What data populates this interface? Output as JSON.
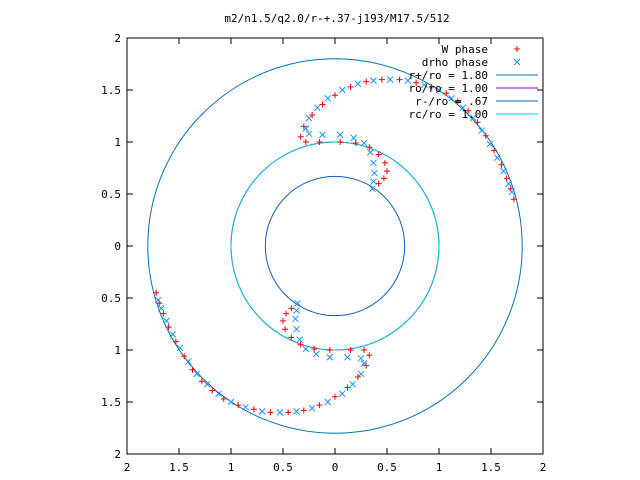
{
  "chart_data": {
    "type": "scatter",
    "title": "m2/n1.5/q2.0/r-+.37-j193/M17.5/512",
    "xlabel": "",
    "ylabel": "",
    "xlim": [
      -2,
      2
    ],
    "ylim": [
      -2,
      2
    ],
    "x_tick_values": [
      -2,
      -1.5,
      -1,
      -0.5,
      0,
      0.5,
      1,
      1.5,
      2
    ],
    "x_tick_labels": [
      "2",
      "1.5",
      "1",
      "0.5",
      "0",
      "0.5",
      "1",
      "1.5",
      "2"
    ],
    "y_tick_values": [
      2,
      1.5,
      1,
      0.5,
      0,
      -0.5,
      -1,
      -1.5,
      -2
    ],
    "y_tick_labels": [
      "2",
      "1.5",
      "1",
      "0.5",
      "0",
      "0.5",
      "1",
      "1.5",
      "2"
    ],
    "grid": false,
    "legend_position": "top-right",
    "legend": [
      {
        "label": "W phase",
        "kind": "marker",
        "marker": "+",
        "color": "#ff0000"
      },
      {
        "label": "drho phase",
        "kind": "marker",
        "marker": "x",
        "color": "#1e90ff"
      },
      {
        "label": "r+/ro = 1.80",
        "kind": "line",
        "color": "#0072b2"
      },
      {
        "label": "ro/ro = 1.00",
        "kind": "line",
        "color": "#9400d3"
      },
      {
        "label": "r-/ro = .67",
        "kind": "line",
        "color": "#1060c0"
      },
      {
        "label": "rc/ro = 1.00",
        "kind": "line",
        "color": "#00c8d0"
      }
    ],
    "circles": [
      {
        "name": "r+/ro = 1.80",
        "radius": 1.8,
        "color": "#0072b2"
      },
      {
        "name": "ro/ro = 1.00",
        "radius": 1.0,
        "color": "#9400d3"
      },
      {
        "name": "r-/ro = .67",
        "radius": 0.67,
        "color": "#1060c0"
      },
      {
        "name": "rc/ro = 1.00",
        "radius": 1.0,
        "color": "#00c8d0"
      }
    ],
    "series": [
      {
        "name": "W phase",
        "color": "#ff0000",
        "marker": "+",
        "points": [
          [
            1.72,
            0.45
          ],
          [
            1.69,
            0.55
          ],
          [
            1.65,
            0.65
          ],
          [
            1.6,
            0.78
          ],
          [
            1.53,
            0.92
          ],
          [
            1.45,
            1.06
          ],
          [
            1.37,
            1.19
          ],
          [
            1.28,
            1.3
          ],
          [
            1.18,
            1.39
          ],
          [
            1.07,
            1.47
          ],
          [
            0.93,
            1.53
          ],
          [
            0.78,
            1.57
          ],
          [
            0.62,
            1.6
          ],
          [
            0.45,
            1.6
          ],
          [
            0.3,
            1.58
          ],
          [
            0.15,
            1.53
          ],
          [
            0.0,
            1.45
          ],
          [
            -0.12,
            1.36
          ],
          [
            -0.22,
            1.26
          ],
          [
            -0.3,
            1.15
          ],
          [
            -0.33,
            1.05
          ],
          [
            -0.28,
            1.0
          ],
          [
            -0.15,
            1.0
          ],
          [
            0.05,
            1.0
          ],
          [
            0.2,
            0.99
          ],
          [
            0.33,
            0.95
          ],
          [
            0.42,
            0.88
          ],
          [
            0.48,
            0.8
          ],
          [
            0.5,
            0.72
          ],
          [
            0.47,
            0.65
          ],
          [
            0.42,
            0.6
          ],
          [
            -1.72,
            -0.45
          ],
          [
            -1.69,
            -0.55
          ],
          [
            -1.65,
            -0.65
          ],
          [
            -1.6,
            -0.78
          ],
          [
            -1.53,
            -0.92
          ],
          [
            -1.45,
            -1.06
          ],
          [
            -1.37,
            -1.19
          ],
          [
            -1.28,
            -1.3
          ],
          [
            -1.18,
            -1.39
          ],
          [
            -1.07,
            -1.47
          ],
          [
            -0.93,
            -1.53
          ],
          [
            -0.78,
            -1.57
          ],
          [
            -0.62,
            -1.6
          ],
          [
            -0.45,
            -1.6
          ],
          [
            -0.3,
            -1.58
          ],
          [
            -0.15,
            -1.53
          ],
          [
            0.0,
            -1.45
          ],
          [
            0.12,
            -1.36
          ],
          [
            0.22,
            -1.26
          ],
          [
            0.3,
            -1.15
          ],
          [
            0.33,
            -1.05
          ],
          [
            0.28,
            -1.0
          ],
          [
            0.15,
            -1.0
          ],
          [
            -0.05,
            -1.0
          ],
          [
            -0.2,
            -0.99
          ],
          [
            -0.33,
            -0.95
          ],
          [
            -0.42,
            -0.88
          ],
          [
            -0.48,
            -0.8
          ],
          [
            -0.5,
            -0.72
          ],
          [
            -0.47,
            -0.65
          ],
          [
            -0.42,
            -0.6
          ]
        ]
      },
      {
        "name": "drho phase",
        "color": "#1e90ff",
        "marker": "x",
        "points": [
          [
            1.7,
            0.52
          ],
          [
            1.67,
            0.6
          ],
          [
            1.62,
            0.72
          ],
          [
            1.56,
            0.85
          ],
          [
            1.49,
            0.98
          ],
          [
            1.41,
            1.11
          ],
          [
            1.33,
            1.23
          ],
          [
            1.23,
            1.33
          ],
          [
            1.12,
            1.42
          ],
          [
            1.0,
            1.5
          ],
          [
            0.86,
            1.55
          ],
          [
            0.7,
            1.59
          ],
          [
            0.53,
            1.6
          ],
          [
            0.37,
            1.59
          ],
          [
            0.22,
            1.56
          ],
          [
            0.07,
            1.5
          ],
          [
            -0.07,
            1.42
          ],
          [
            -0.17,
            1.33
          ],
          [
            -0.25,
            1.23
          ],
          [
            -0.28,
            1.13
          ],
          [
            -0.25,
            1.08
          ],
          [
            -0.12,
            1.07
          ],
          [
            0.05,
            1.07
          ],
          [
            0.18,
            1.04
          ],
          [
            0.28,
            0.99
          ],
          [
            0.34,
            0.9
          ],
          [
            0.37,
            0.8
          ],
          [
            0.38,
            0.7
          ],
          [
            0.37,
            0.62
          ],
          [
            0.36,
            0.55
          ],
          [
            -1.7,
            -0.52
          ],
          [
            -1.67,
            -0.6
          ],
          [
            -1.62,
            -0.72
          ],
          [
            -1.56,
            -0.85
          ],
          [
            -1.49,
            -0.98
          ],
          [
            -1.41,
            -1.11
          ],
          [
            -1.33,
            -1.23
          ],
          [
            -1.23,
            -1.33
          ],
          [
            -1.12,
            -1.42
          ],
          [
            -1.0,
            -1.5
          ],
          [
            -0.86,
            -1.55
          ],
          [
            -0.7,
            -1.59
          ],
          [
            -0.53,
            -1.6
          ],
          [
            -0.37,
            -1.59
          ],
          [
            -0.22,
            -1.56
          ],
          [
            -0.07,
            -1.5
          ],
          [
            0.07,
            -1.42
          ],
          [
            0.17,
            -1.33
          ],
          [
            0.25,
            -1.23
          ],
          [
            0.28,
            -1.13
          ],
          [
            0.25,
            -1.08
          ],
          [
            0.12,
            -1.07
          ],
          [
            -0.05,
            -1.07
          ],
          [
            -0.18,
            -1.04
          ],
          [
            -0.28,
            -0.99
          ],
          [
            -0.34,
            -0.9
          ],
          [
            -0.37,
            -0.8
          ],
          [
            -0.38,
            -0.7
          ],
          [
            -0.37,
            -0.62
          ],
          [
            -0.36,
            -0.55
          ]
        ]
      }
    ]
  }
}
